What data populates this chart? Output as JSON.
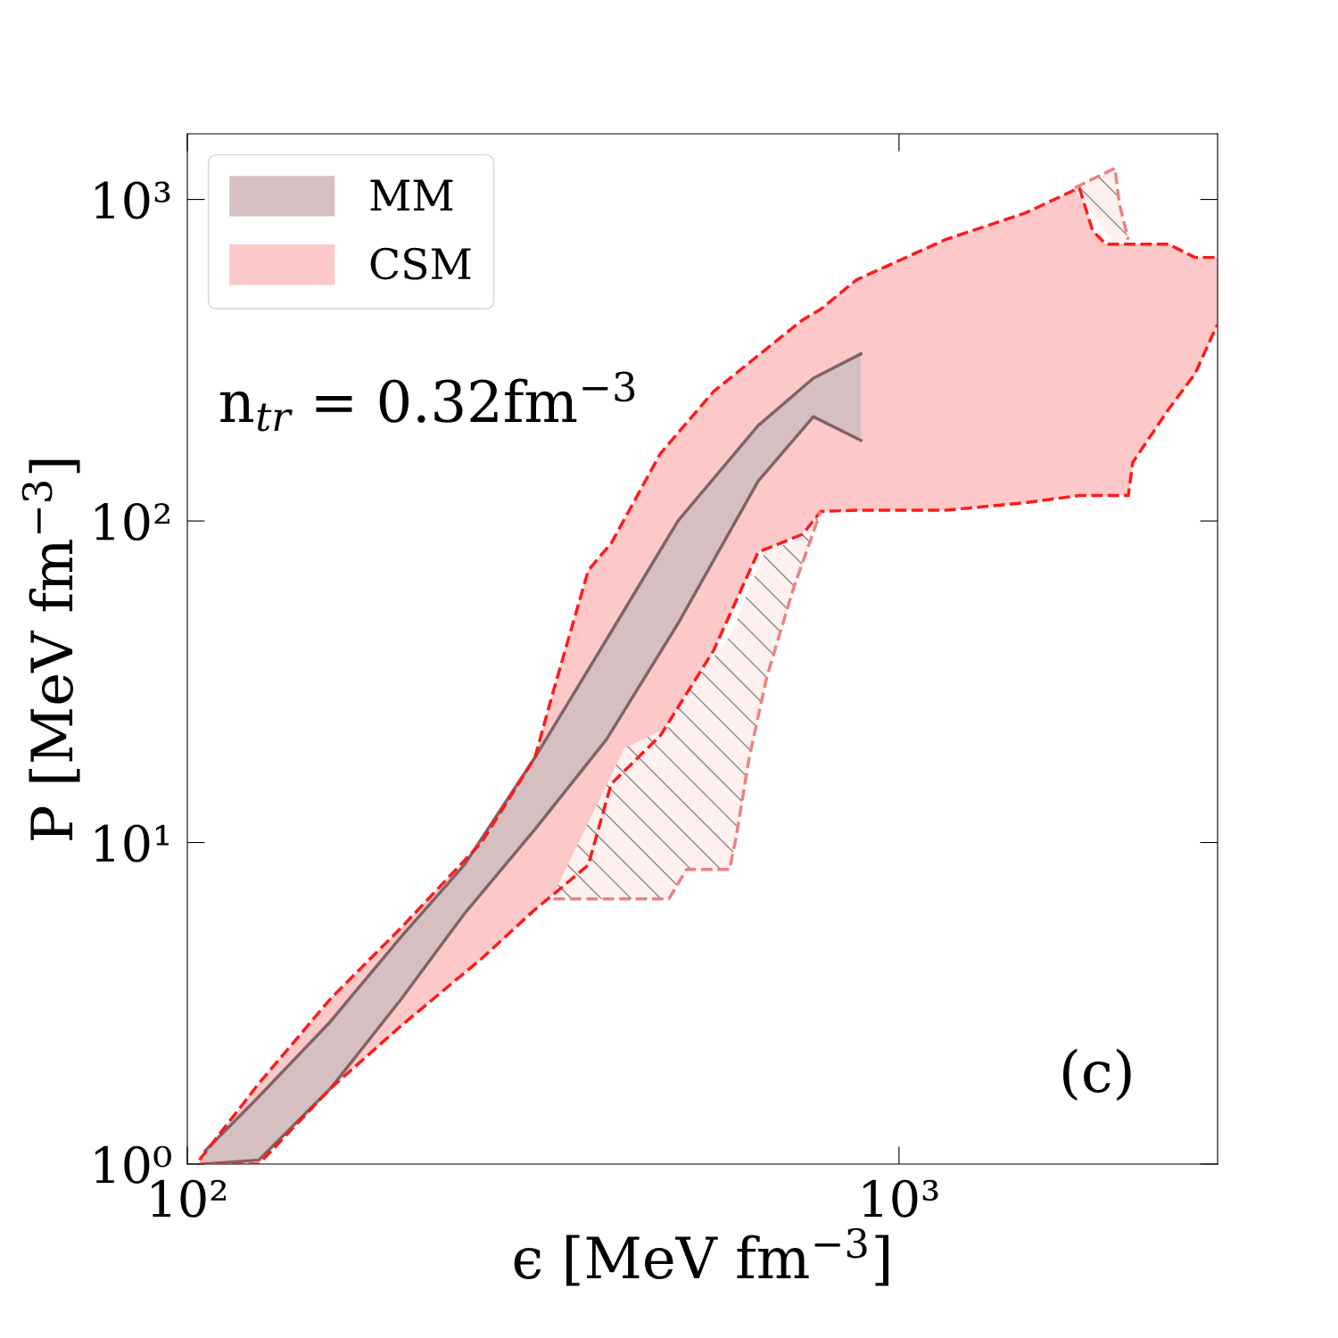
{
  "chart_data": {
    "type": "area",
    "xlabel": "ϵ [MeV fm$^{−3}$]",
    "ylabel": "P [MeV fm$^{−3}$]",
    "log": "xy",
    "xlim": [
      100,
      2803
    ],
    "ylim": [
      1,
      1600
    ],
    "xticks": [
      {
        "value": 100,
        "label": "10²"
      },
      {
        "value": 1000,
        "label": "10³"
      }
    ],
    "yticks": [
      {
        "value": 1,
        "label": "10⁰"
      },
      {
        "value": 10,
        "label": "10¹"
      },
      {
        "value": 100,
        "label": "10²"
      },
      {
        "value": 1000,
        "label": "10³"
      }
    ],
    "grid": false,
    "legend": "top left",
    "annotations": [
      "n$_{tr}$ = 0.32fm$^{−3}$",
      "(c)"
    ],
    "series": [
      {
        "name": "MM",
        "color": "#d6bfc1",
        "x": [
          106,
          126,
          159,
          200,
          245,
          308,
          388,
          489,
          634,
          758,
          884
        ],
        "values": [
          null,
          null,
          null,
          null,
          null,
          null,
          null,
          null,
          null,
          null,
          null
        ],
        "upper": [
          1.1,
          1.62,
          2.78,
          5.11,
          8.52,
          18.4,
          42.7,
          100,
          198,
          278,
          331
        ],
        "lower": [
          1.0,
          1.03,
          1.72,
          3.27,
          6.0,
          11.0,
          20.9,
          47.9,
          133,
          211,
          178
        ]
      },
      {
        "color": "#fff0f0",
        "x": [
          1766,
          2011,
          2040,
          2100
        ],
        "values": [
          null,
          null,
          null,
          null
        ],
        "upper": [
          1087,
          1251,
          969,
          750
        ],
        "lower": [
          1066,
          726,
          726,
          726
        ]
      },
      {
        "color": "#fff0f0",
        "x": [
          327,
          411,
          475,
          503,
          578,
          590,
          616,
          652,
          711,
          776
        ],
        "values": [
          null,
          null,
          null,
          null,
          null,
          null,
          null,
          null,
          null,
          null
        ],
        "upper": [
          6.9,
          19.6,
          23.0,
          29.7,
          43.6,
          47.9,
          61.9,
          82.5,
          85.2,
          107
        ],
        "lower": [
          6.68,
          6.68,
          6.68,
          8.25,
          8.25,
          10.3,
          18.4,
          32.7,
          61.9,
          107
        ]
      },
      {
        "name": "CSM",
        "color": "#fcc8c8",
        "x": [
          104,
          126,
          159,
          200,
          259,
          308,
          327,
          366,
          394,
          462,
          549,
          634,
          732,
          776,
          871,
          1162,
          1506,
          1792,
          1871,
          1953,
          2100,
          2130,
          2257,
          2390,
          2606,
          2746,
          2803
        ],
        "values": [
          null,
          null,
          null,
          null,
          null,
          null,
          null,
          null,
          null,
          null,
          null,
          null,
          null,
          null,
          null,
          null,
          null,
          null,
          null,
          null,
          null,
          null,
          null,
          null,
          null,
          null,
          null
        ],
        "upper": [
          1.03,
          1.78,
          3.27,
          5.45,
          10,
          18.4,
          29.7,
          70.3,
          85.2,
          162,
          253,
          327,
          422,
          455,
          562,
          750,
          908,
          1087,
          799,
          726,
          726,
          726,
          726,
          726,
          660,
          660,
          660
        ],
        "lower": [
          1.0,
          1.0,
          1.72,
          2.7,
          4.35,
          6.19,
          6.9,
          8.52,
          15.2,
          21.5,
          39.6,
          80.0,
          90.9,
          107,
          108,
          108,
          114,
          120,
          120,
          120,
          120,
          152,
          184,
          222,
          287,
          371,
          408
        ]
      },
      {
        "type": "line",
        "color": "#f08080",
        "line_style": "dashed",
        "x": [
          327,
          411,
          475,
          503,
          578,
          590,
          616,
          652,
          711,
          776
        ],
        "values": [
          6.68,
          6.68,
          6.68,
          8.25,
          8.25,
          10.3,
          18.4,
          32.7,
          61.9,
          107
        ]
      },
      {
        "type": "line",
        "color": "#f08080",
        "line_style": "dashed",
        "x": [
          1766,
          2011,
          2040,
          2100
        ],
        "values": [
          1087,
          1251,
          969,
          750
        ]
      },
      {
        "type": "line",
        "color": "#ff1a1a",
        "line_style": "dashed",
        "x": [
          104,
          126,
          159,
          200,
          259,
          308,
          327,
          366,
          394,
          462,
          549,
          634,
          732,
          776,
          871,
          1162,
          1506,
          1792,
          1871,
          1953,
          2100,
          2130,
          2257,
          2390,
          2606,
          2746,
          2803
        ],
        "values": [
          1.03,
          1.78,
          3.27,
          5.45,
          10,
          18.4,
          29.7,
          70.3,
          85.2,
          162,
          253,
          327,
          422,
          455,
          562,
          750,
          908,
          1087,
          799,
          726,
          726,
          726,
          726,
          726,
          660,
          660,
          660
        ]
      },
      {
        "type": "line",
        "color": "#ff1a1a",
        "line_style": "dashed",
        "x": [
          104,
          126,
          159,
          200,
          259,
          308,
          327,
          366,
          394,
          462,
          549,
          634,
          732,
          776,
          871,
          1162,
          1506,
          1792,
          1871,
          1953,
          2100,
          2130,
          2257,
          2390,
          2606,
          2746,
          2803
        ],
        "values": [
          1.0,
          1.0,
          1.72,
          2.7,
          4.35,
          6.19,
          6.9,
          8.52,
          15.2,
          21.5,
          39.6,
          80.0,
          90.9,
          107,
          108,
          108,
          114,
          120,
          120,
          120,
          120,
          152,
          184,
          222,
          287,
          371,
          408
        ]
      },
      {
        "type": "line",
        "color": "#7f6466",
        "line_style": "solid",
        "x": [
          106,
          126,
          159,
          200,
          245,
          308,
          388,
          489,
          634,
          758,
          884
        ],
        "values": [
          1.1,
          1.62,
          2.78,
          5.11,
          8.52,
          18.4,
          42.7,
          100,
          198,
          278,
          331
        ]
      },
      {
        "type": "line",
        "color": "#7f6466",
        "line_style": "solid",
        "x": [
          106,
          126,
          159,
          200,
          245,
          308,
          388,
          489,
          634,
          758,
          884
        ],
        "values": [
          1.0,
          1.03,
          1.72,
          3.27,
          6.0,
          11.0,
          20.9,
          47.9,
          133,
          211,
          178
        ]
      }
    ]
  }
}
